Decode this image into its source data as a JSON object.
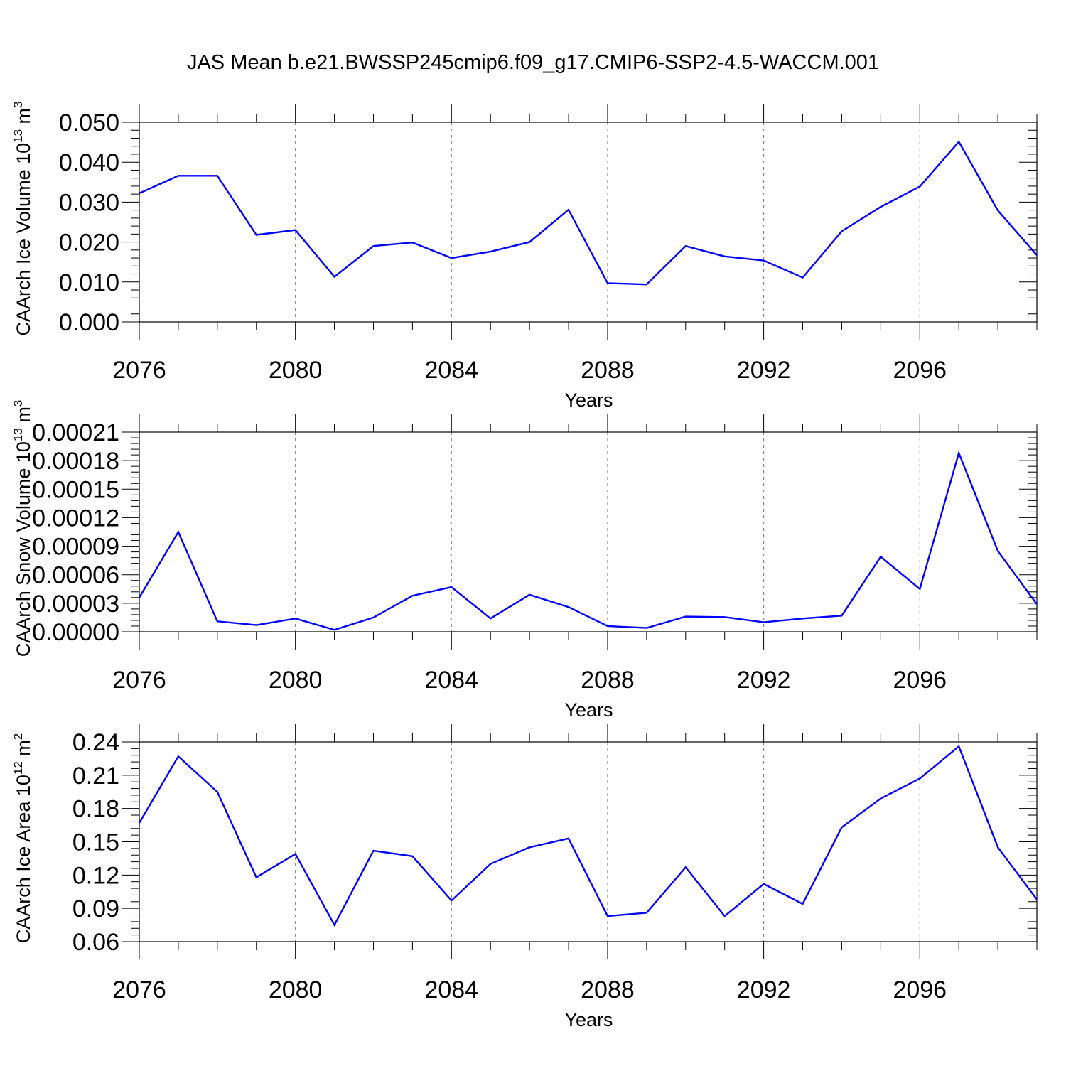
{
  "page": {
    "title": "JAS Mean b.e21.BWSSP245cmip6.f09_g17.CMIP6-SSP2-4.5-WACCM.001"
  },
  "colors": {
    "line": "#0000ff",
    "axis": "#000000",
    "grid": "#777777"
  },
  "chart_data": [
    {
      "type": "line",
      "ylabel": "CAArch Ice Volume 10",
      "ylabel_exp": "13",
      "ylabel_unit": "m",
      "ylabel_unit_exp": "3",
      "xlabel": "Years",
      "xlim": [
        2076,
        2099
      ],
      "ylim": [
        0.0,
        0.05
      ],
      "yticks": [
        0.0,
        0.01,
        0.02,
        0.03,
        0.04,
        0.05
      ],
      "yticklabels": [
        "0.000",
        "0.010",
        "0.020",
        "0.030",
        "0.040",
        "0.050"
      ],
      "xticks": [
        2076,
        2080,
        2084,
        2088,
        2092,
        2096
      ],
      "xticklabels": [
        "2076",
        "2080",
        "2084",
        "2088",
        "2092",
        "2096"
      ],
      "series": [
        {
          "name": "CAArch Ice Volume",
          "x": [
            2076,
            2077,
            2078,
            2079,
            2080,
            2081,
            2082,
            2083,
            2084,
            2085,
            2086,
            2087,
            2088,
            2089,
            2090,
            2091,
            2092,
            2093,
            2094,
            2095,
            2096,
            2097,
            2098,
            2099
          ],
          "values": [
            0.0322,
            0.0366,
            0.0366,
            0.0218,
            0.023,
            0.0113,
            0.019,
            0.0199,
            0.016,
            0.0176,
            0.02,
            0.0281,
            0.0097,
            0.0094,
            0.019,
            0.0164,
            0.0154,
            0.0111,
            0.0227,
            0.0288,
            0.0339,
            0.0451,
            0.0279,
            0.0167
          ]
        }
      ]
    },
    {
      "type": "line",
      "ylabel": "CAArch Snow Volume 10",
      "ylabel_exp": "13",
      "ylabel_unit": "m",
      "ylabel_unit_exp": "3",
      "xlabel": "Years",
      "xlim": [
        2076,
        2099
      ],
      "ylim": [
        0.0,
        0.00021
      ],
      "yticks": [
        0.0,
        3e-05,
        6e-05,
        9e-05,
        0.00012,
        0.00015,
        0.00018,
        0.00021
      ],
      "yticklabels": [
        "0.00000",
        "0.00003",
        "0.00006",
        "0.00009",
        "0.00012",
        "0.00015",
        "0.00018",
        "0.00021"
      ],
      "xticks": [
        2076,
        2080,
        2084,
        2088,
        2092,
        2096
      ],
      "xticklabels": [
        "2076",
        "2080",
        "2084",
        "2088",
        "2092",
        "2096"
      ],
      "series": [
        {
          "name": "CAArch Snow Volume",
          "x": [
            2076,
            2077,
            2078,
            2079,
            2080,
            2081,
            2082,
            2083,
            2084,
            2085,
            2086,
            2087,
            2088,
            2089,
            2090,
            2091,
            2092,
            2093,
            2094,
            2095,
            2096,
            2097,
            2098,
            2099
          ],
          "values": [
            3.6e-05,
            0.000105,
            1.1e-05,
            7e-06,
            1.4e-05,
            2e-06,
            1.5e-05,
            3.8e-05,
            4.7e-05,
            1.4e-05,
            3.9e-05,
            2.6e-05,
            6e-06,
            4e-06,
            1.6e-05,
            1.55e-05,
            1e-05,
            1.4e-05,
            1.7e-05,
            7.9e-05,
            4.5e-05,
            0.000188,
            8.5e-05,
            2.9e-05
          ]
        }
      ]
    },
    {
      "type": "line",
      "ylabel": "CAArch Ice Area 10",
      "ylabel_exp": "12",
      "ylabel_unit": "m",
      "ylabel_unit_exp": "2",
      "xlabel": "Years",
      "xlim": [
        2076,
        2099
      ],
      "ylim": [
        0.06,
        0.24
      ],
      "yticks": [
        0.06,
        0.09,
        0.12,
        0.15,
        0.18,
        0.21,
        0.24
      ],
      "yticklabels": [
        "0.06",
        "0.09",
        "0.12",
        "0.15",
        "0.18",
        "0.21",
        "0.24"
      ],
      "xticks": [
        2076,
        2080,
        2084,
        2088,
        2092,
        2096
      ],
      "xticklabels": [
        "2076",
        "2080",
        "2084",
        "2088",
        "2092",
        "2096"
      ],
      "series": [
        {
          "name": "CAArch Ice Area",
          "x": [
            2076,
            2077,
            2078,
            2079,
            2080,
            2081,
            2082,
            2083,
            2084,
            2085,
            2086,
            2087,
            2088,
            2089,
            2090,
            2091,
            2092,
            2093,
            2094,
            2095,
            2096,
            2097,
            2098,
            2099
          ],
          "values": [
            0.167,
            0.227,
            0.195,
            0.118,
            0.139,
            0.075,
            0.142,
            0.137,
            0.097,
            0.13,
            0.145,
            0.153,
            0.083,
            0.086,
            0.127,
            0.083,
            0.112,
            0.094,
            0.163,
            0.189,
            0.207,
            0.236,
            0.145,
            0.098
          ]
        }
      ]
    }
  ]
}
